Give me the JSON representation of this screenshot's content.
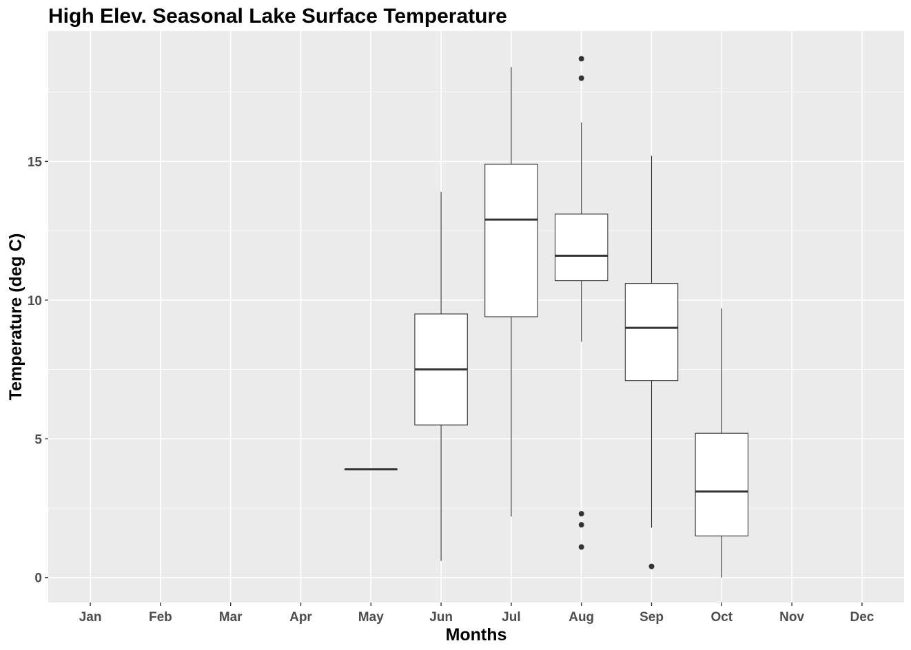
{
  "chart_data": {
    "type": "box",
    "title": "High Elev. Seasonal Lake Surface Temperature",
    "xlabel": "Months",
    "ylabel": "Temperature (deg C)",
    "categories": [
      "Jan",
      "Feb",
      "Mar",
      "Apr",
      "May",
      "Jun",
      "Jul",
      "Aug",
      "Sep",
      "Oct",
      "Nov",
      "Dec"
    ],
    "ylim": [
      -0.9,
      19.7
    ],
    "yticks": [
      "0",
      "5",
      "10",
      "15"
    ],
    "y_minor_ticks": [
      2.5,
      7.5,
      12.5,
      17.5
    ],
    "grid": true,
    "colors": {
      "panel": "#ebebeb",
      "grid": "#ffffff",
      "box_fill": "#ffffff",
      "box_line": "#333333",
      "tick_text": "#4d4d4d"
    },
    "boxes": [
      {
        "month": "May",
        "min": 3.9,
        "q1": 3.9,
        "median": 3.9,
        "q3": 3.9,
        "max": 3.9,
        "outliers": []
      },
      {
        "month": "Jun",
        "min": 0.6,
        "q1": 5.5,
        "median": 7.5,
        "q3": 9.5,
        "max": 13.9,
        "outliers": []
      },
      {
        "month": "Jul",
        "min": 2.2,
        "q1": 9.4,
        "median": 12.9,
        "q3": 14.9,
        "max": 18.4,
        "outliers": []
      },
      {
        "month": "Aug",
        "min": 8.5,
        "q1": 10.7,
        "median": 11.6,
        "q3": 13.1,
        "max": 16.4,
        "outliers": [
          18.7,
          18.0,
          2.3,
          1.9,
          1.1
        ]
      },
      {
        "month": "Sep",
        "min": 1.8,
        "q1": 7.1,
        "median": 9.0,
        "q3": 10.6,
        "max": 15.2,
        "outliers": [
          0.4
        ]
      },
      {
        "month": "Oct",
        "min": 0.0,
        "q1": 1.5,
        "median": 3.1,
        "q3": 5.2,
        "max": 9.7,
        "outliers": []
      }
    ]
  }
}
